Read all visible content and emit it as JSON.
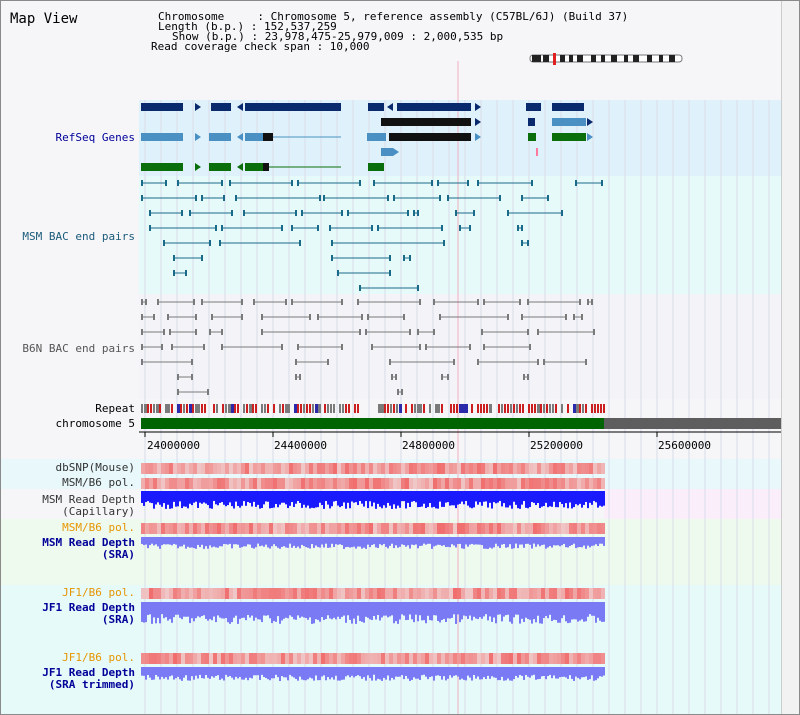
{
  "panel_title": "Map View",
  "info": {
    "line1": "Chromosome     : Chromosome 5, reference assembly (C57BL/6J) (Build 37)",
    "line2": "Length (b.p.) : 152,537,259",
    "line3": "Show (b.p.) : 23,978,475-25,979,009 : 2,000,535 bp",
    "line4": "Read coverage check span : 10,000"
  },
  "tracks": {
    "refseq": "RefSeq Genes",
    "msm_bac": "MSM BAC end pairs",
    "b6n_bac": "B6N BAC end pairs",
    "repeat": "Repeat",
    "chromosome": "chromosome 5",
    "dbsnp": "dbSNP(Mouse)",
    "msmb6_pol": "MSM/B6 pol.",
    "msm_depth_cap_1": "MSM Read Depth",
    "msm_depth_cap_2": "(Capillary)",
    "msmb6_pol_orange": "MSM/B6 pol.",
    "msm_depth_sra_1": "MSM Read Depth",
    "msm_depth_sra_2": "(SRA)",
    "jf1b6_pol_1": "JF1/B6 pol.",
    "jf1_depth_sra_1": "JF1 Read Depth",
    "jf1_depth_sra_2": "(SRA)",
    "jf1b6_pol_2": "JF1/B6 pol.",
    "jf1_depth_trim_1": "JF1 Read Depth",
    "jf1_depth_trim_2": "(SRA trimmed)"
  },
  "axis_ticks": [
    "24000000",
    "24400000",
    "24800000",
    "25200000",
    "25600000"
  ],
  "colors": {
    "refseq_bg": "#dff2fb",
    "msm_bg": "#e6fafa",
    "b6n_bg": "#f4f4f8",
    "gene_navy": "#0a2a6e",
    "gene_teal": "#4a90c2",
    "gene_green": "#0a6e0a",
    "msm_line": "#1a6a8a",
    "b6n_line": "#7a7a7a",
    "chrom_green": "#006400",
    "chrom_gray": "#606060",
    "depth_blue_dark": "#1a1aff",
    "depth_blue_light": "#7a7af5",
    "snp_red": "#e84040",
    "label_blue": "#000099",
    "label_orange": "#e69500"
  }
}
